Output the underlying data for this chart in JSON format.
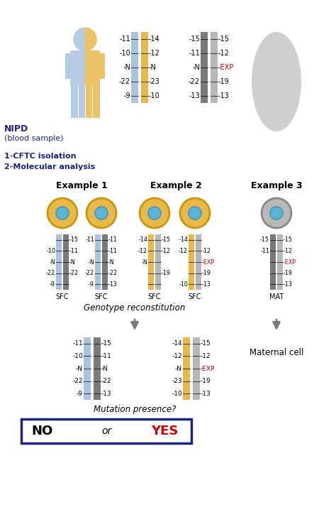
{
  "bg_color": "#ffffff",
  "blue_color": "#aac4e0",
  "yellow_color": "#e8b84b",
  "gray_dark": "#7a7a7a",
  "gray_light": "#b8b8b8",
  "red_color": "#cc0000",
  "navy_color": "#1a237e",
  "father_left": [
    "-11",
    "-10",
    "-N",
    "-22",
    "-9"
  ],
  "father_right": [
    "-14",
    "-12",
    "-N",
    "-23",
    "-10"
  ],
  "mother_left": [
    "-15",
    "-11",
    "-N",
    "-22",
    "-13"
  ],
  "mother_right": [
    "-15",
    "-12",
    "-EXP",
    "-19",
    "-13"
  ],
  "ex1_sfc1_left": [
    "-",
    "-10",
    "-N",
    "-22",
    "-9"
  ],
  "ex1_sfc1_right": [
    "-15",
    "-11",
    "-N",
    "-22",
    "-"
  ],
  "ex1_sfc2_left": [
    "-11",
    "-",
    "-N",
    "-22",
    "-9"
  ],
  "ex1_sfc2_right": [
    "-11",
    "-11",
    "-N",
    "-22",
    "-13"
  ],
  "ex2_sfc3_left": [
    "-14",
    "-12",
    "-N",
    "-",
    "-"
  ],
  "ex2_sfc3_right": [
    "-15",
    "-12",
    "-",
    "-19",
    "-"
  ],
  "ex2_sfc4_left": [
    "-14",
    "-12",
    "-",
    "-",
    "-10"
  ],
  "ex2_sfc4_right": [
    "-",
    "-12",
    "-EXP",
    "-19",
    "-13"
  ],
  "ex3_mat_left": [
    "-15",
    "-11",
    "-",
    "-",
    "-"
  ],
  "ex3_mat_right": [
    "-15",
    "-12",
    "-EXP",
    "-19",
    "-13"
  ],
  "recon1_left": [
    "-11",
    "-10",
    "-N",
    "-22",
    "-9"
  ],
  "recon1_right": [
    "-15",
    "-11",
    "-N",
    "-22",
    "-13"
  ],
  "recon2_left": [
    "-14",
    "-12",
    "-N",
    "-23",
    "-10"
  ],
  "recon2_right": [
    "-15",
    "-12",
    "-EXP",
    "-19",
    "-13"
  ]
}
